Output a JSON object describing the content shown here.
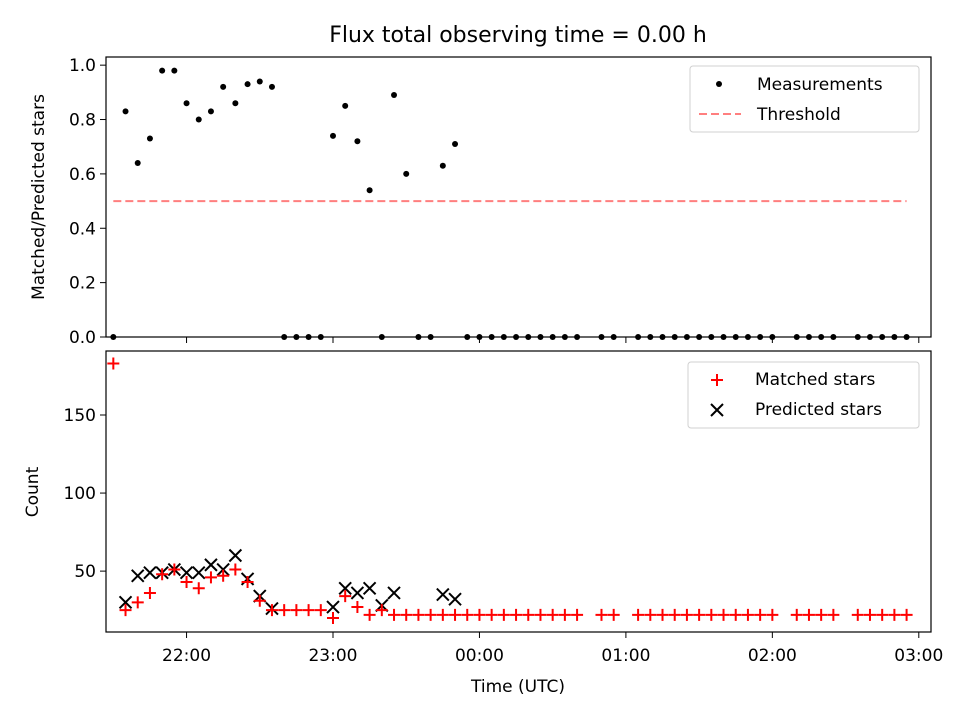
{
  "title": "Flux total observing time = 0.00 h",
  "colors": {
    "measurement": "#000000",
    "threshold": "#ff7f7f",
    "matched": "#ff0000",
    "predicted": "#000000"
  },
  "chart_data": [
    {
      "type": "scatter",
      "name": "ratio",
      "ylabel": "Matched/Predicted stars",
      "xlabel": "",
      "xlim": [
        "21:27",
        "03:05"
      ],
      "ylim": [
        0,
        1.03
      ],
      "yticks": [
        "0.0",
        "0.2",
        "0.4",
        "0.6",
        "0.8",
        "1.0"
      ],
      "legend": "top-right",
      "series": [
        {
          "name": "Measurements",
          "marker": "dot",
          "x": [
            "21:30",
            "21:35",
            "21:40",
            "21:45",
            "21:50",
            "21:55",
            "22:00",
            "22:05",
            "22:10",
            "22:15",
            "22:20",
            "22:25",
            "22:30",
            "22:35",
            "22:40",
            "22:45",
            "22:50",
            "22:55",
            "23:00",
            "23:05",
            "23:10",
            "23:15",
            "23:20",
            "23:25",
            "23:30",
            "23:35",
            "23:40",
            "23:45",
            "23:50",
            "23:55",
            "24:00",
            "24:05",
            "24:10",
            "24:15",
            "24:20",
            "24:25",
            "24:30",
            "24:35",
            "24:40",
            "24:50",
            "24:55",
            "25:05",
            "25:10",
            "25:15",
            "25:20",
            "25:25",
            "25:30",
            "25:35",
            "25:40",
            "25:45",
            "25:50",
            "25:55",
            "26:00",
            "26:10",
            "26:15",
            "26:20",
            "26:25",
            "26:35",
            "26:40",
            "26:45",
            "26:50",
            "26:55"
          ],
          "y": [
            0,
            0.83,
            0.64,
            0.73,
            0.98,
            0.98,
            0.86,
            0.8,
            0.83,
            0.92,
            0.86,
            0.93,
            0.94,
            0.92,
            0,
            0,
            0,
            0,
            0.74,
            0.85,
            0.72,
            0.54,
            0,
            0.89,
            0.6,
            0,
            0,
            0.63,
            0.71,
            0,
            0,
            0,
            0,
            0,
            0,
            0,
            0,
            0,
            0,
            0,
            0,
            0,
            0,
            0,
            0,
            0,
            0,
            0,
            0,
            0,
            0,
            0,
            0,
            0,
            0,
            0,
            0,
            0,
            0,
            0,
            0,
            0
          ]
        },
        {
          "name": "Threshold",
          "style": "dashed",
          "x": [
            "21:30",
            "26:55"
          ],
          "y": [
            0.5,
            0.5
          ]
        }
      ]
    },
    {
      "type": "scatter",
      "name": "counts",
      "xlabel": "Time (UTC)",
      "ylabel": "Count",
      "xlim": [
        "21:27",
        "03:05"
      ],
      "ylim": [
        11,
        191
      ],
      "xticks": [
        "22:00",
        "23:00",
        "00:00",
        "01:00",
        "02:00",
        "03:00"
      ],
      "yticks": [
        "50",
        "100",
        "150"
      ],
      "legend": "top-right",
      "series": [
        {
          "name": "Matched stars",
          "marker": "plus",
          "x": [
            "21:30",
            "21:35",
            "21:40",
            "21:45",
            "21:50",
            "21:55",
            "22:00",
            "22:05",
            "22:10",
            "22:15",
            "22:20",
            "22:25",
            "22:30",
            "22:35",
            "22:40",
            "22:45",
            "22:50",
            "22:55",
            "23:00",
            "23:05",
            "23:10",
            "23:15",
            "23:20",
            "23:25",
            "23:30",
            "23:35",
            "23:40",
            "23:45",
            "23:50",
            "23:55",
            "24:00",
            "24:05",
            "24:10",
            "24:15",
            "24:20",
            "24:25",
            "24:30",
            "24:35",
            "24:40",
            "24:50",
            "24:55",
            "25:05",
            "25:10",
            "25:15",
            "25:20",
            "25:25",
            "25:30",
            "25:35",
            "25:40",
            "25:45",
            "25:50",
            "25:55",
            "26:00",
            "26:10",
            "26:15",
            "26:20",
            "26:25",
            "26:35",
            "26:40",
            "26:45",
            "26:50",
            "26:55"
          ],
          "y": [
            183,
            25,
            30,
            36,
            48,
            51,
            43,
            39,
            46,
            47,
            51,
            43,
            31,
            25,
            25,
            25,
            25,
            25,
            20,
            34,
            27,
            22,
            25,
            22,
            22,
            22,
            22,
            22,
            22,
            22,
            22,
            22,
            22,
            22,
            22,
            22,
            22,
            22,
            22,
            22,
            22,
            22,
            22,
            22,
            22,
            22,
            22,
            22,
            22,
            22,
            22,
            22,
            22,
            22,
            22,
            22,
            22,
            22,
            22,
            22,
            22,
            22
          ]
        },
        {
          "name": "Predicted stars",
          "marker": "x",
          "x": [
            "21:35",
            "21:40",
            "21:45",
            "21:50",
            "21:55",
            "22:00",
            "22:05",
            "22:10",
            "22:15",
            "22:20",
            "22:25",
            "22:30",
            "22:35",
            "23:00",
            "23:05",
            "23:10",
            "23:15",
            "23:20",
            "23:25",
            "23:45",
            "23:50"
          ],
          "y": [
            30,
            47,
            49,
            49,
            51,
            49,
            49,
            54,
            51,
            60,
            45,
            34,
            26,
            27,
            39,
            36,
            39,
            28,
            36,
            35,
            32
          ]
        }
      ]
    }
  ]
}
